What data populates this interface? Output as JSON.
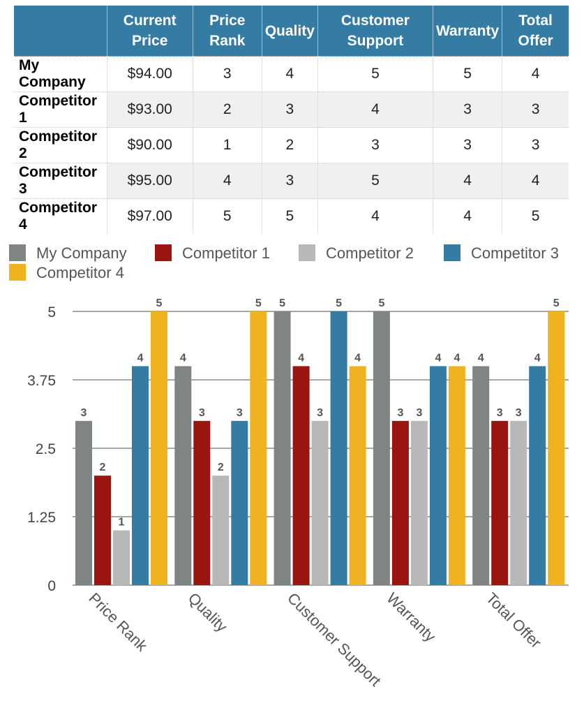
{
  "table": {
    "headers": [
      "",
      "Current Price",
      "Price Rank",
      "Quality",
      "Customer Support",
      "Warranty",
      "Total Offer"
    ],
    "rows": [
      [
        "My Company",
        "$94.00",
        "3",
        "4",
        "5",
        "5",
        "4"
      ],
      [
        "Competitor 1",
        "$93.00",
        "2",
        "3",
        "4",
        "3",
        "3"
      ],
      [
        "Competitor 2",
        "$90.00",
        "1",
        "2",
        "3",
        "3",
        "3"
      ],
      [
        "Competitor 3",
        "$95.00",
        "4",
        "3",
        "5",
        "4",
        "4"
      ],
      [
        "Competitor 4",
        "$97.00",
        "5",
        "5",
        "4",
        "4",
        "5"
      ]
    ]
  },
  "chart_data": {
    "type": "bar",
    "categories": [
      "Price Rank",
      "Quality",
      "Customer Support",
      "Warranty",
      "Total Offer"
    ],
    "series": [
      {
        "name": "My Company",
        "color": "#7f8582",
        "values": [
          3,
          4,
          5,
          5,
          4
        ]
      },
      {
        "name": "Competitor 1",
        "color": "#9a150f",
        "values": [
          2,
          3,
          4,
          3,
          3
        ]
      },
      {
        "name": "Competitor 2",
        "color": "#b8b8b8",
        "values": [
          1,
          2,
          3,
          3,
          3
        ]
      },
      {
        "name": "Competitor 3",
        "color": "#357ca5",
        "values": [
          4,
          3,
          5,
          4,
          4
        ]
      },
      {
        "name": "Competitor 4",
        "color": "#efb31f",
        "values": [
          5,
          5,
          4,
          4,
          5
        ]
      }
    ],
    "yticks": [
      "0",
      "1.25",
      "2.5",
      "3.75",
      "5"
    ],
    "ylim": [
      0,
      5
    ],
    "legend": "top",
    "grid": true
  }
}
